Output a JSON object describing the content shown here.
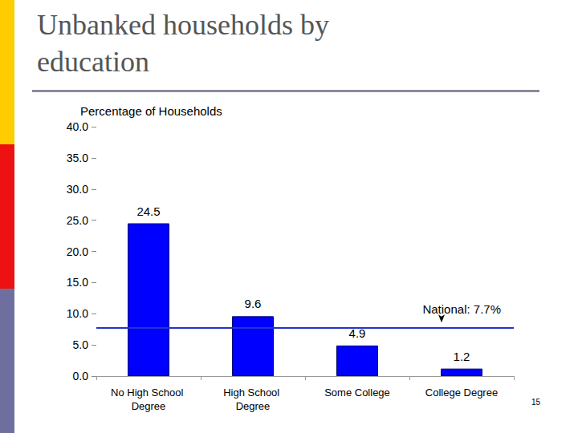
{
  "chart_data": {
    "type": "bar",
    "title": "Unbanked households by education",
    "page_number": 15,
    "y_label": "Percentage of Households",
    "categories": [
      "No High School Degree",
      "High School Degree",
      "Some College",
      "College Degree"
    ],
    "values": [
      24.5,
      9.6,
      4.9,
      1.2
    ],
    "color": "#0000ff",
    "ylim": [
      0,
      40
    ],
    "yticks": [
      {
        "value": 0,
        "label": "0.0"
      },
      {
        "value": 5,
        "label": "5.0"
      },
      {
        "value": 10,
        "label": "10.0"
      },
      {
        "value": 15,
        "label": "15.0"
      },
      {
        "value": 20,
        "label": "20.0"
      },
      {
        "value": 25,
        "label": "25.0"
      },
      {
        "value": 30,
        "label": "30.0"
      },
      {
        "value": 35,
        "label": "35.0"
      },
      {
        "value": 40,
        "label": "40.0"
      }
    ],
    "grid": false,
    "data_labels": true,
    "reference_line": {
      "value": 7.7,
      "label": "National: 7.7%"
    }
  }
}
